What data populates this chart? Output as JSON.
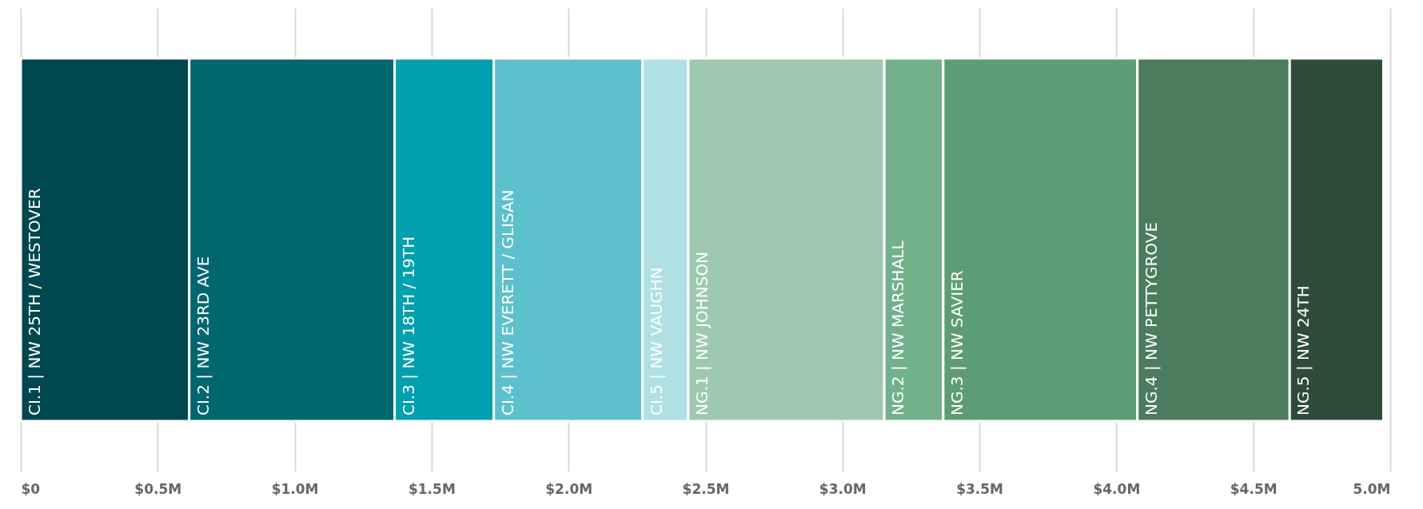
{
  "chart_data": {
    "type": "bar",
    "orientation": "horizontal",
    "stacked": true,
    "categories": [
      null
    ],
    "series": [
      {
        "name": "CI.1 | NW 25TH / WESTOVER",
        "color": "#00474f",
        "values": [
          0.615
        ]
      },
      {
        "name": "CI.2 | NW 23RD AVE",
        "color": "#006670",
        "values": [
          0.75
        ]
      },
      {
        "name": "CI.3 | NW 18TH / 19TH",
        "color": "#00a0ae",
        "values": [
          0.362
        ]
      },
      {
        "name": "CI.4 | NW EVERETT / GLISAN",
        "color": "#5cc1cc",
        "values": [
          0.543
        ]
      },
      {
        "name": "CI.5 | NW VAUGHN",
        "color": "#b0e0e3",
        "values": [
          0.167
        ]
      },
      {
        "name": "NG.1 | NW JOHNSON",
        "color": "#9ec9b0",
        "values": [
          0.716
        ]
      },
      {
        "name": "NG.2 | NW MARSHALL",
        "color": "#72b18c",
        "values": [
          0.215
        ]
      },
      {
        "name": "NG.3 | NW SAVIER",
        "color": "#5d9d76",
        "values": [
          0.709
        ]
      },
      {
        "name": "NG.4 | NW PETTYGROVE",
        "color": "#4b7c5d",
        "values": [
          0.556
        ]
      },
      {
        "name": "NG.5 | NW 24TH",
        "color": "#2f4c3a",
        "values": [
          0.342
        ]
      }
    ],
    "xlim": [
      0,
      5.0
    ],
    "xticks": [
      {
        "value": 0,
        "label": "$0"
      },
      {
        "value": 0.5,
        "label": "$0.5M"
      },
      {
        "value": 1.0,
        "label": "$1.0M"
      },
      {
        "value": 1.5,
        "label": "$1.5M"
      },
      {
        "value": 2.0,
        "label": "$2.0M"
      },
      {
        "value": 2.5,
        "label": "$2.5M"
      },
      {
        "value": 3.0,
        "label": "$3.0M"
      },
      {
        "value": 3.5,
        "label": "$3.5M"
      },
      {
        "value": 4.0,
        "label": "$4.0M"
      },
      {
        "value": 4.5,
        "label": "$4.5M"
      },
      {
        "value": 5.0,
        "label": "5.0M"
      }
    ],
    "grid": "x",
    "legend": false,
    "tick_labels": "x"
  }
}
